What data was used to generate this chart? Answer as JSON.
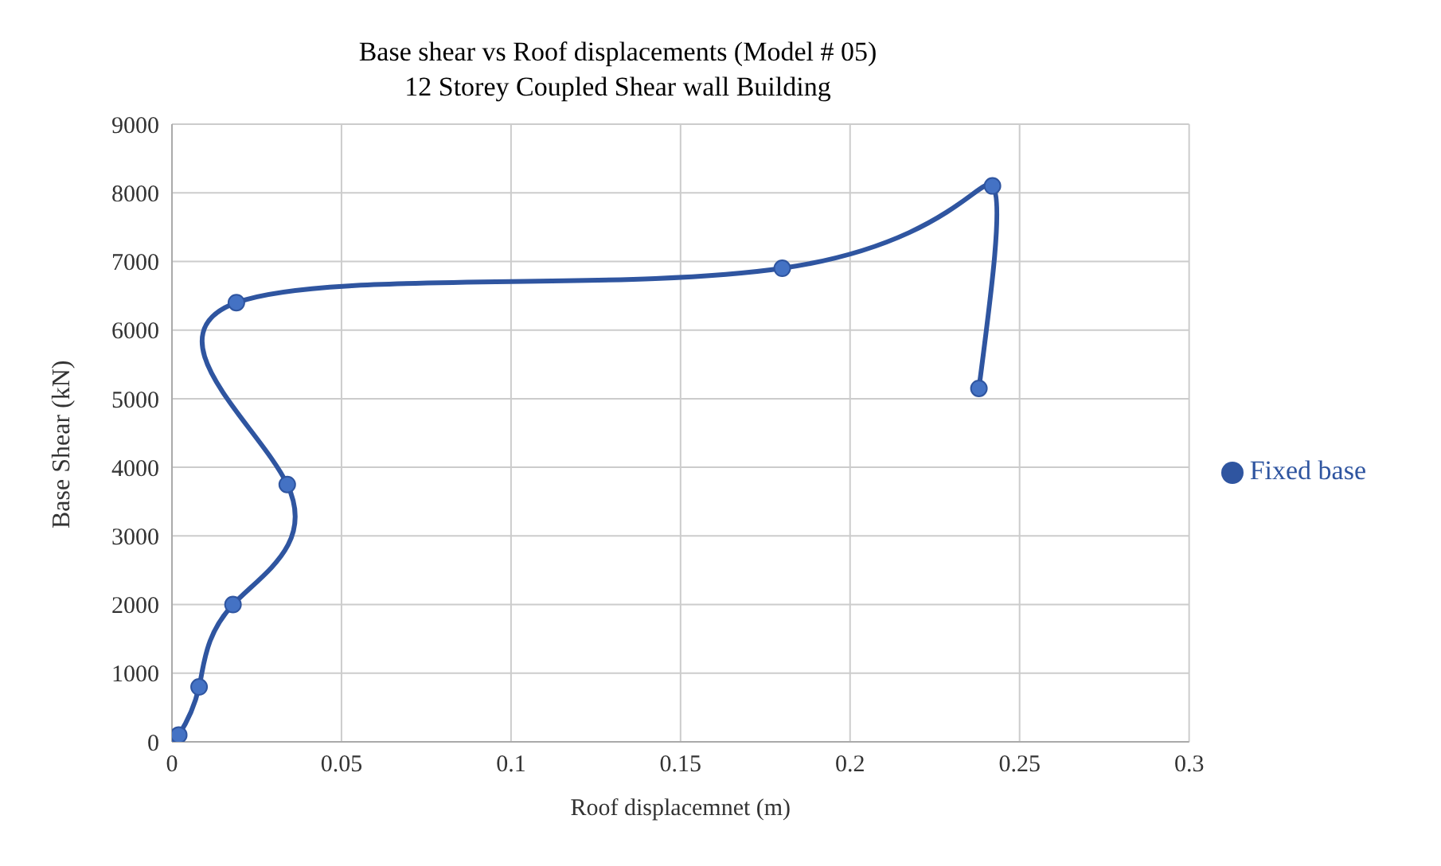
{
  "chart_data": {
    "type": "line",
    "title": "Base shear vs Roof displacements (Model # 05)",
    "subtitle": "12 Storey Coupled Shear wall Building",
    "xlabel": "Roof displacemnet (m)",
    "ylabel": "Base Shear (kN)",
    "x": [
      0,
      0.002,
      0.008,
      0.018,
      0.034,
      0.019,
      0.18,
      0.242,
      0.238
    ],
    "series": [
      {
        "name": "Fixed base",
        "color": "#2f55a0",
        "values": [
          0,
          100,
          800,
          2000,
          3750,
          6400,
          6900,
          8100,
          5150
        ]
      }
    ],
    "xlim": [
      0,
      0.3
    ],
    "xticks": [
      0,
      0.05,
      0.1,
      0.15,
      0.2,
      0.25,
      0.3
    ],
    "ylim": [
      0,
      9000
    ],
    "yticks": [
      0,
      1000,
      2000,
      3000,
      4000,
      5000,
      6000,
      7000,
      8000,
      9000
    ],
    "grid": true,
    "legend": "right",
    "marker": "circle",
    "line_style": "solid"
  }
}
